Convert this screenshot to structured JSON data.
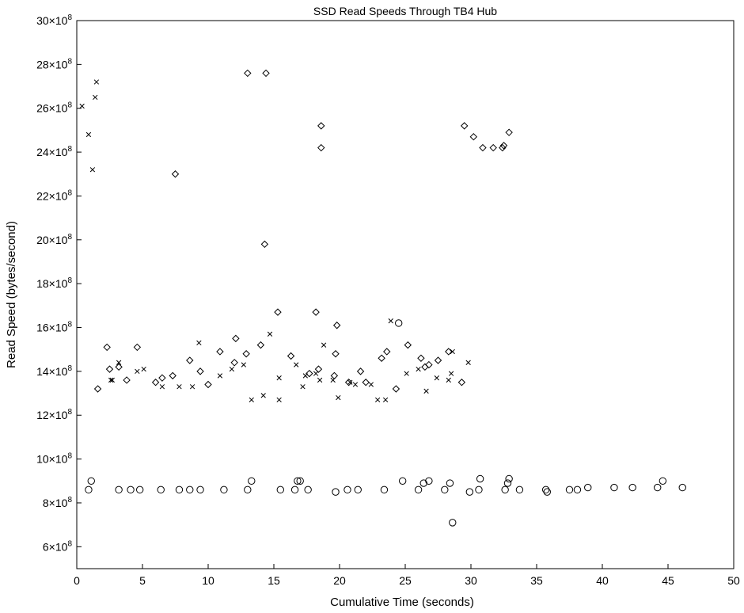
{
  "chart_data": {
    "type": "scatter",
    "title": "SSD Read Speeds Through TB4 Hub",
    "xlabel": "Cumulative Time (seconds)",
    "ylabel": "Read Speed (bytes/second)",
    "xlim": [
      0,
      50
    ],
    "ylim": [
      5,
      30
    ],
    "y_scale_exponent": 8,
    "grid": false,
    "legend": "none",
    "x_ticks": [
      "0",
      "5",
      "10",
      "15",
      "20",
      "25",
      "30",
      "35",
      "40",
      "45",
      "50"
    ],
    "y_ticks": [
      {
        "mantissa": "6",
        "value": 6
      },
      {
        "mantissa": "8",
        "value": 8
      },
      {
        "mantissa": "10",
        "value": 10
      },
      {
        "mantissa": "12",
        "value": 12
      },
      {
        "mantissa": "14",
        "value": 14
      },
      {
        "mantissa": "16",
        "value": 16
      },
      {
        "mantissa": "18",
        "value": 18
      },
      {
        "mantissa": "20",
        "value": 20
      },
      {
        "mantissa": "22",
        "value": 22
      },
      {
        "mantissa": "24",
        "value": 24
      },
      {
        "mantissa": "26",
        "value": 26
      },
      {
        "mantissa": "28",
        "value": 28
      },
      {
        "mantissa": "30",
        "value": 30
      }
    ],
    "y_tick_suffix": "×10",
    "series": [
      {
        "marker": "x",
        "points": [
          [
            0.4,
            26.1
          ],
          [
            0.9,
            24.8
          ],
          [
            1.2,
            23.2
          ],
          [
            1.4,
            26.5
          ],
          [
            1.5,
            27.2
          ],
          [
            2.6,
            13.6
          ],
          [
            2.7,
            13.6
          ],
          [
            3.2,
            14.4
          ],
          [
            4.6,
            14.0
          ],
          [
            5.1,
            14.1
          ],
          [
            6.5,
            13.3
          ],
          [
            7.8,
            13.3
          ],
          [
            8.8,
            13.3
          ],
          [
            9.3,
            15.3
          ],
          [
            10.9,
            13.8
          ],
          [
            11.8,
            14.1
          ],
          [
            12.7,
            14.3
          ],
          [
            13.3,
            12.7
          ],
          [
            14.2,
            12.9
          ],
          [
            14.7,
            15.7
          ],
          [
            15.4,
            13.7
          ],
          [
            15.4,
            12.7
          ],
          [
            16.7,
            14.3
          ],
          [
            17.2,
            13.3
          ],
          [
            17.4,
            13.8
          ],
          [
            18.2,
            13.9
          ],
          [
            18.5,
            13.6
          ],
          [
            18.8,
            15.2
          ],
          [
            19.5,
            13.6
          ],
          [
            19.9,
            12.8
          ],
          [
            20.8,
            13.5
          ],
          [
            21.2,
            13.4
          ],
          [
            22.4,
            13.4
          ],
          [
            22.9,
            12.7
          ],
          [
            23.5,
            12.7
          ],
          [
            23.9,
            16.3
          ],
          [
            25.1,
            13.9
          ],
          [
            26.0,
            14.1
          ],
          [
            26.6,
            13.1
          ],
          [
            27.4,
            13.7
          ],
          [
            28.3,
            13.6
          ],
          [
            28.5,
            13.9
          ],
          [
            28.6,
            14.9
          ],
          [
            29.8,
            14.4
          ]
        ]
      },
      {
        "marker": "diamond",
        "points": [
          [
            1.6,
            13.2
          ],
          [
            2.3,
            15.1
          ],
          [
            2.5,
            14.1
          ],
          [
            3.2,
            14.2
          ],
          [
            3.8,
            13.6
          ],
          [
            4.6,
            15.1
          ],
          [
            6.0,
            13.5
          ],
          [
            6.5,
            13.7
          ],
          [
            7.3,
            13.8
          ],
          [
            7.5,
            23.0
          ],
          [
            8.6,
            14.5
          ],
          [
            9.4,
            14.0
          ],
          [
            10.0,
            13.4
          ],
          [
            10.9,
            14.9
          ],
          [
            12.0,
            14.4
          ],
          [
            12.1,
            15.5
          ],
          [
            12.9,
            14.8
          ],
          [
            13.0,
            27.6
          ],
          [
            14.0,
            15.2
          ],
          [
            14.3,
            19.8
          ],
          [
            14.4,
            27.6
          ],
          [
            15.3,
            16.7
          ],
          [
            16.3,
            14.7
          ],
          [
            17.7,
            13.9
          ],
          [
            18.2,
            16.7
          ],
          [
            18.4,
            14.1
          ],
          [
            18.6,
            24.2
          ],
          [
            18.6,
            25.2
          ],
          [
            19.6,
            13.8
          ],
          [
            19.7,
            14.8
          ],
          [
            19.8,
            16.1
          ],
          [
            20.7,
            13.5
          ],
          [
            21.6,
            14.0
          ],
          [
            22.0,
            13.5
          ],
          [
            23.2,
            14.6
          ],
          [
            23.6,
            14.9
          ],
          [
            24.3,
            13.2
          ],
          [
            25.2,
            15.2
          ],
          [
            26.2,
            14.6
          ],
          [
            26.5,
            14.2
          ],
          [
            26.8,
            14.3
          ],
          [
            27.5,
            14.5
          ],
          [
            28.3,
            14.9
          ],
          [
            29.3,
            13.5
          ],
          [
            29.5,
            25.2
          ],
          [
            30.2,
            24.7
          ],
          [
            30.9,
            24.2
          ],
          [
            31.7,
            24.2
          ],
          [
            32.4,
            24.2
          ],
          [
            32.5,
            24.3
          ],
          [
            32.9,
            24.9
          ]
        ]
      },
      {
        "marker": "circle",
        "points": [
          [
            0.9,
            8.6
          ],
          [
            1.1,
            9.0
          ],
          [
            3.2,
            8.6
          ],
          [
            4.1,
            8.6
          ],
          [
            4.8,
            8.6
          ],
          [
            6.4,
            8.6
          ],
          [
            7.8,
            8.6
          ],
          [
            8.6,
            8.6
          ],
          [
            9.4,
            8.6
          ],
          [
            11.2,
            8.6
          ],
          [
            13.0,
            8.6
          ],
          [
            13.3,
            9.0
          ],
          [
            15.5,
            8.6
          ],
          [
            16.6,
            8.6
          ],
          [
            16.8,
            9.0
          ],
          [
            17.0,
            9.0
          ],
          [
            17.6,
            8.6
          ],
          [
            19.7,
            8.5
          ],
          [
            20.6,
            8.6
          ],
          [
            21.4,
            8.6
          ],
          [
            23.4,
            8.6
          ],
          [
            24.5,
            16.2
          ],
          [
            24.8,
            9.0
          ],
          [
            26.0,
            8.6
          ],
          [
            26.4,
            8.9
          ],
          [
            26.8,
            9.0
          ],
          [
            28.0,
            8.6
          ],
          [
            28.4,
            8.9
          ],
          [
            28.6,
            7.1
          ],
          [
            29.9,
            8.5
          ],
          [
            30.6,
            8.6
          ],
          [
            30.7,
            9.1
          ],
          [
            32.6,
            8.6
          ],
          [
            32.8,
            8.9
          ],
          [
            32.9,
            9.1
          ],
          [
            33.7,
            8.6
          ],
          [
            35.7,
            8.6
          ],
          [
            35.8,
            8.5
          ],
          [
            37.5,
            8.6
          ],
          [
            38.1,
            8.6
          ],
          [
            38.9,
            8.7
          ],
          [
            40.9,
            8.7
          ],
          [
            42.3,
            8.7
          ],
          [
            44.2,
            8.7
          ],
          [
            44.6,
            9.0
          ],
          [
            46.1,
            8.7
          ]
        ]
      }
    ]
  }
}
